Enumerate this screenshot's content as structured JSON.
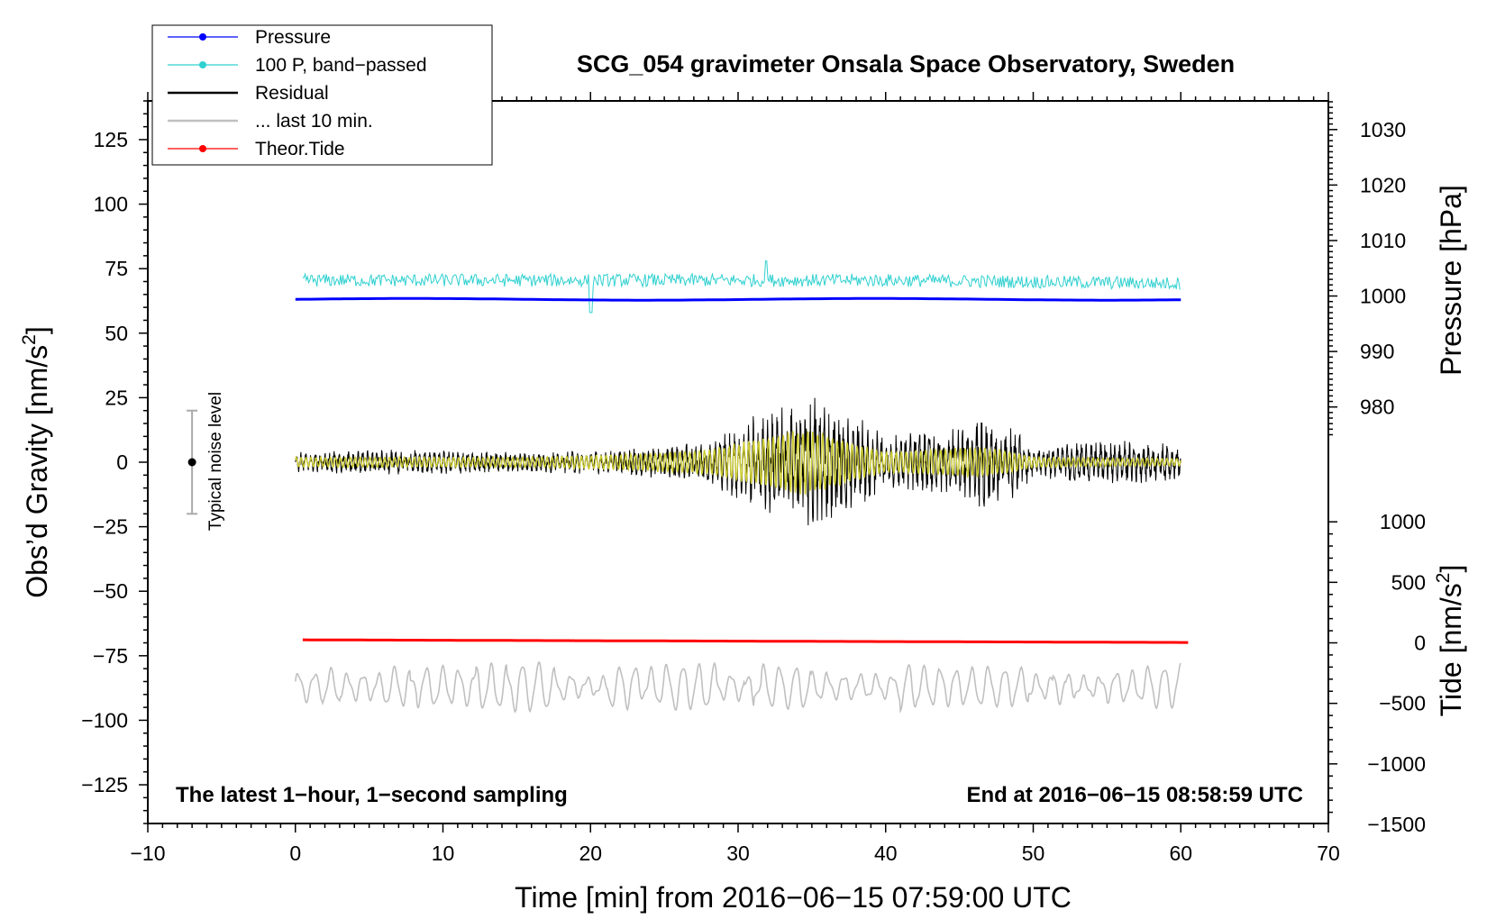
{
  "chart_data": {
    "type": "line",
    "title": "SCG_054 gravimeter Onsala Space Observatory, Sweden",
    "xlabel": "Time [min] from 2016−06−15 07:59:00 UTC",
    "ylabel_left": "Obs'd Gravity [nm/s2]",
    "ylabel_left_main": "Obs’d Gravity [nm/s",
    "ylabel_left_sup": "2",
    "ylabel_left_end": "]",
    "ylabel_right_top": "Pressure [hPa]",
    "ylabel_right_bottom": "Tide [nm/s2]",
    "ylabel_right_bottom_main": "Tide [nm/s",
    "ylabel_right_bottom_sup": "2",
    "ylabel_right_bottom_end": "]",
    "xlim": [
      -10,
      70
    ],
    "ylim_left": [
      -140,
      140
    ],
    "x_ticks": [
      -10,
      0,
      10,
      20,
      30,
      40,
      50,
      60,
      70
    ],
    "x_tick_labels": [
      "−10",
      "0",
      "10",
      "20",
      "30",
      "40",
      "50",
      "60",
      "70"
    ],
    "y_left_ticks": [
      125,
      100,
      75,
      50,
      25,
      0,
      -25,
      -50,
      -75,
      -100,
      -125
    ],
    "y_left_tick_labels": [
      "125",
      "100",
      "75",
      "50",
      "25",
      "0",
      "−25",
      "−50",
      "−75",
      "−100",
      "−125"
    ],
    "pressure_axis": {
      "ticks": [
        1030,
        1020,
        1010,
        1000,
        990,
        980
      ],
      "tick_labels": [
        "1030",
        "1020",
        "1010",
        "1000",
        "990",
        "980"
      ],
      "gravity_at_1000": 64.4,
      "gravity_per_hpa": 2.15
    },
    "tide_axis": {
      "ticks": [
        1000,
        500,
        0,
        -500,
        -1000,
        -1500
      ],
      "tick_labels": [
        "1000",
        "500",
        "0",
        "−500",
        "−1000",
        "−1500"
      ],
      "gravity_at_0": -70,
      "gravity_per_unit": 0.0469
    },
    "legend": [
      {
        "label": "Pressure",
        "color": "#0000ff",
        "marker": "dot"
      },
      {
        "label": "100 P, band−passed",
        "color": "#30d0d0",
        "marker": "dot"
      },
      {
        "label": "Residual",
        "color": "#000000",
        "marker": "none"
      },
      {
        "label": "... last 10 min.",
        "color": "#c0c0c0",
        "marker": "none"
      },
      {
        "label": "Theor.Tide",
        "color": "#ff0000",
        "marker": "dot"
      }
    ],
    "series": [
      {
        "name": "Pressure",
        "color": "#0000ff",
        "unit": "hPa",
        "x_range": [
          0,
          60
        ],
        "level_hpa": 999.4
      },
      {
        "name": "100 P, band-passed",
        "color": "#30d0d0",
        "unit": "nm/s2",
        "x_range": [
          0.5,
          60
        ],
        "center": 70.5,
        "noise_amplitude": 2.5
      },
      {
        "name": "Residual",
        "color": "#000000",
        "unit": "nm/s2",
        "x_range": [
          0,
          60
        ],
        "envelope": [
          [
            0,
            4
          ],
          [
            8,
            5
          ],
          [
            16,
            4
          ],
          [
            22,
            5
          ],
          [
            28,
            8
          ],
          [
            31,
            18
          ],
          [
            33,
            24
          ],
          [
            35,
            28
          ],
          [
            37,
            20
          ],
          [
            38.5,
            18
          ],
          [
            40,
            10
          ],
          [
            42,
            12
          ],
          [
            45,
            14
          ],
          [
            47,
            20
          ],
          [
            48.5,
            15
          ],
          [
            50,
            6
          ],
          [
            53,
            8
          ],
          [
            55,
            9
          ],
          [
            58,
            8
          ],
          [
            60,
            7
          ]
        ]
      },
      {
        "name": "Residual (smoothed)",
        "color": "#cccc33",
        "unit": "nm/s2",
        "x_range": [
          0,
          60
        ],
        "envelope": [
          [
            0,
            2
          ],
          [
            16,
            2
          ],
          [
            22,
            3
          ],
          [
            28,
            5
          ],
          [
            31,
            9
          ],
          [
            33,
            12
          ],
          [
            35,
            13
          ],
          [
            37,
            9
          ],
          [
            40,
            4
          ],
          [
            43,
            5
          ],
          [
            46,
            6
          ],
          [
            48,
            5
          ],
          [
            50,
            2
          ],
          [
            60,
            1.5
          ]
        ]
      },
      {
        "name": "... last 10 min.",
        "color": "#c0c0c0",
        "unit": "nm/s2",
        "x_range": [
          0,
          60
        ],
        "center": -87,
        "amplitude_range": [
          3,
          9
        ]
      },
      {
        "name": "Theor.Tide",
        "color": "#ff0000",
        "unit": "nm/s2",
        "x_range": [
          0.5,
          60.5
        ],
        "start": 25,
        "end": 3
      }
    ],
    "noise_bar": {
      "x": -7,
      "low": -20,
      "high": 20,
      "center": 0,
      "label": "Typical noise level"
    },
    "annotations": {
      "bottom_left": "The latest 1−hour, 1−second sampling",
      "bottom_right": "End at 2016−06−15 08:58:59 UTC"
    }
  }
}
